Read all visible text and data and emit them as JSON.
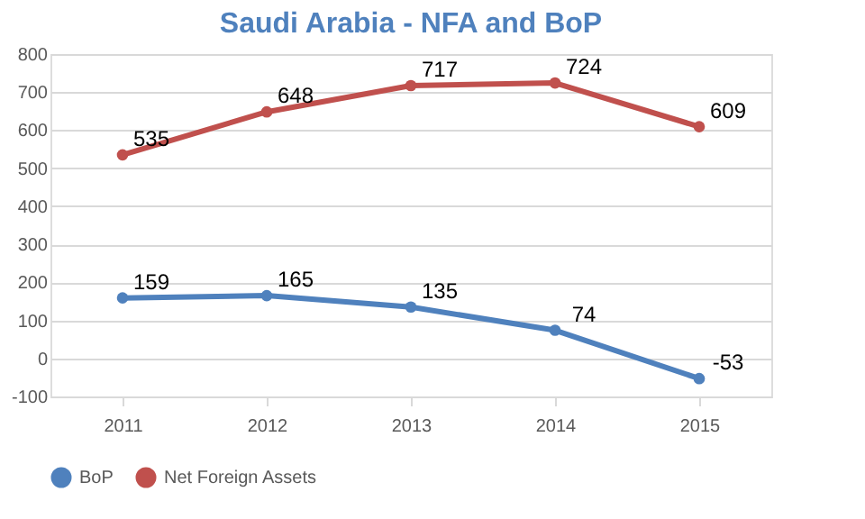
{
  "chart_data": {
    "type": "line",
    "title": "Saudi Arabia - NFA and BoP",
    "categories": [
      "2011",
      "2012",
      "2013",
      "2014",
      "2015"
    ],
    "series": [
      {
        "name": "BoP",
        "color": "#4f81bd",
        "values": [
          159,
          165,
          135,
          74,
          -53
        ]
      },
      {
        "name": "Net Foreign Assets",
        "color": "#c0504d",
        "values": [
          535,
          648,
          717,
          724,
          609
        ]
      }
    ],
    "ylim": [
      -100,
      800
    ],
    "yticks": [
      -100,
      0,
      100,
      200,
      300,
      400,
      500,
      600,
      700,
      800
    ],
    "grid": "y",
    "legend": "bottom",
    "marker": "circle",
    "line_style": "solid",
    "data_labels": true
  }
}
